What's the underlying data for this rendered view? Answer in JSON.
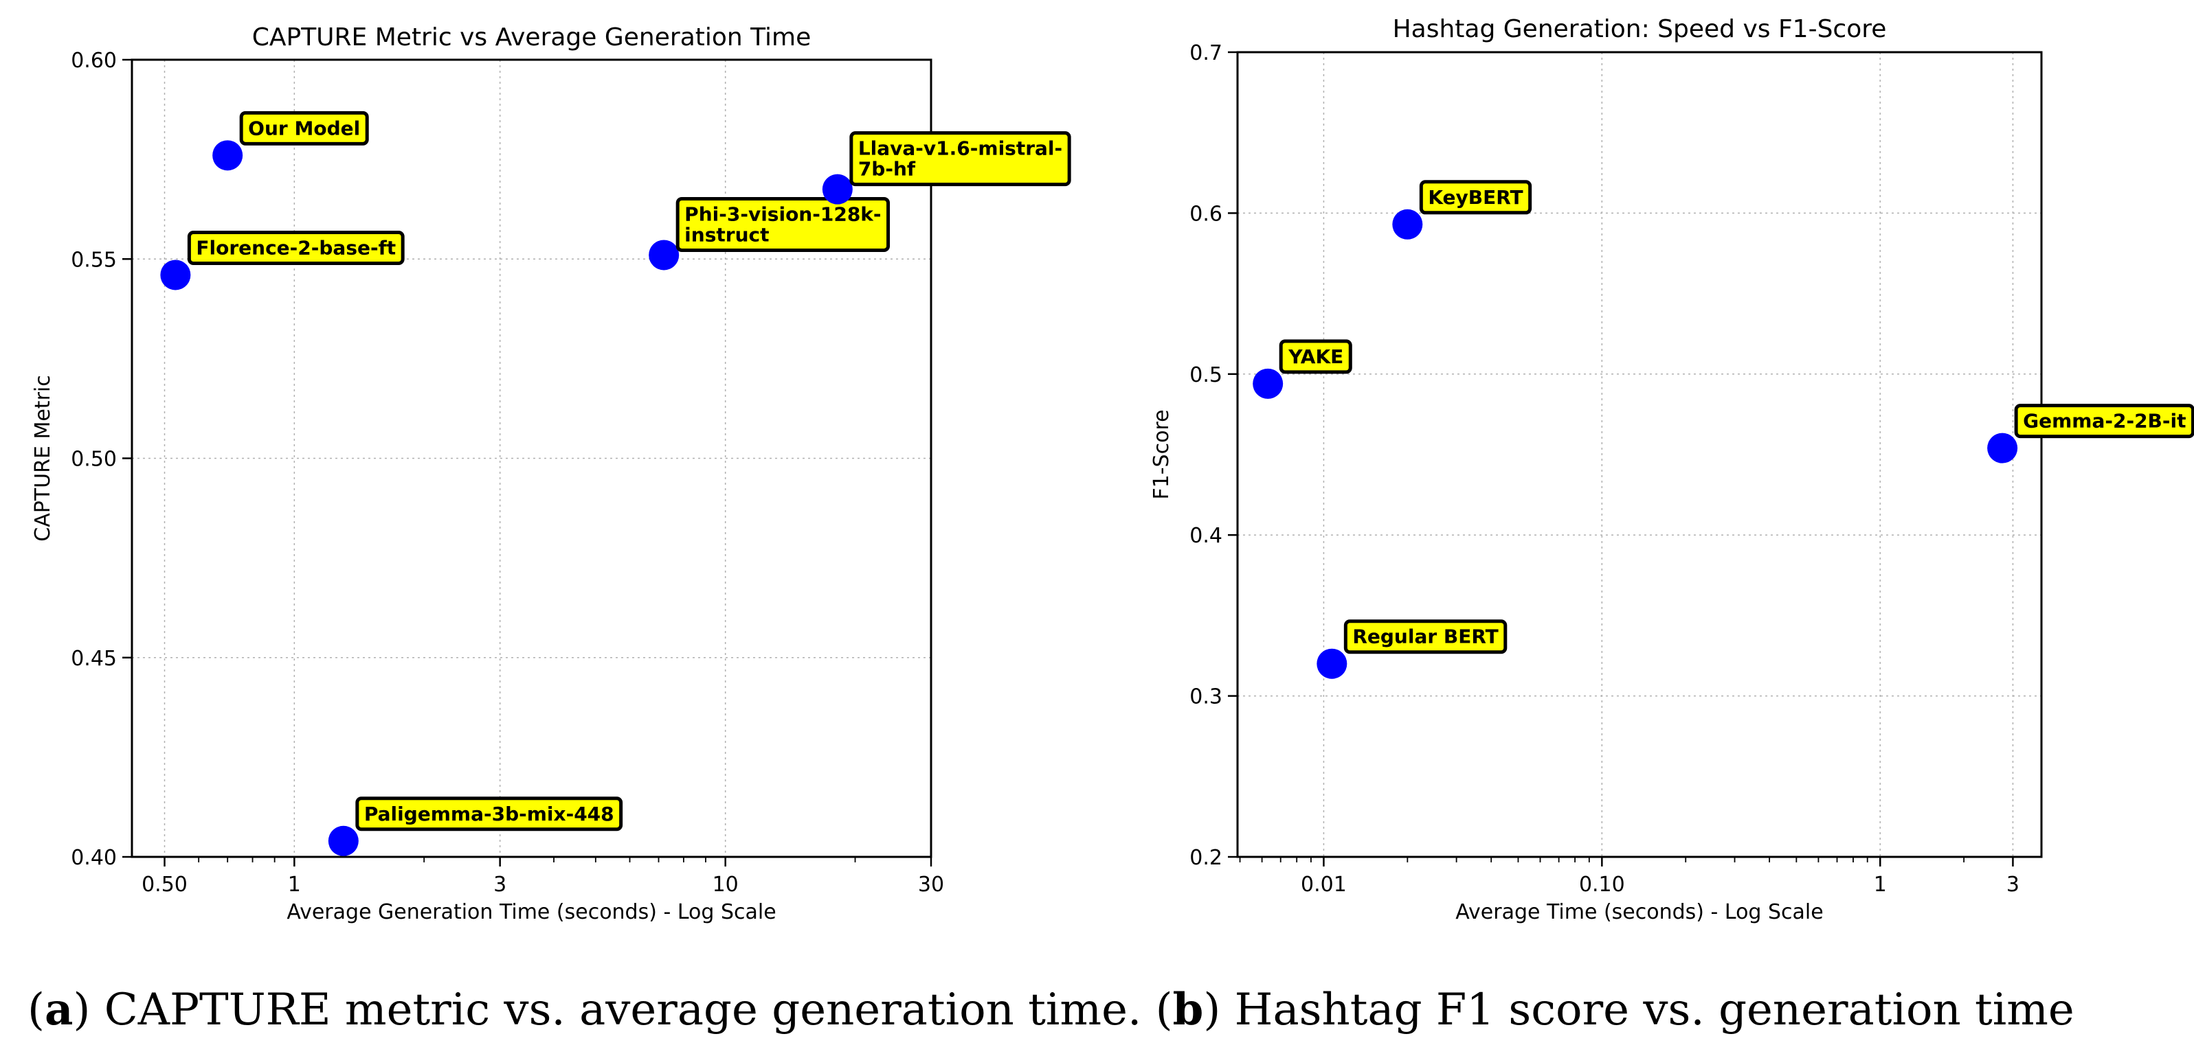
{
  "chart_data": [
    {
      "type": "scatter",
      "title": "CAPTURE Metric vs Average Generation Time",
      "xlabel": "Average Generation Time (seconds) - Log Scale",
      "ylabel": "CAPTURE Metric",
      "xscale": "log",
      "xlim": [
        0.42,
        30
      ],
      "ylim": [
        0.4,
        0.6
      ],
      "xticks": [
        0.5,
        1,
        3,
        10,
        30
      ],
      "xtick_labels": [
        "0.50",
        "1",
        "3",
        "10",
        "30"
      ],
      "yticks": [
        0.4,
        0.45,
        0.5,
        0.55,
        0.6
      ],
      "ytick_labels": [
        "0.40",
        "0.45",
        "0.50",
        "0.55",
        "0.60"
      ],
      "grid": true,
      "point_color": "#0000ff",
      "label_box_color": "#ffff00",
      "points": [
        {
          "label": [
            "Our Model"
          ],
          "x": 0.7,
          "y": 0.576
        },
        {
          "label": [
            "Florence-2-base-ft"
          ],
          "x": 0.53,
          "y": 0.546
        },
        {
          "label": [
            "Phi-3-vision-128k-",
            "instruct"
          ],
          "x": 7.2,
          "y": 0.551
        },
        {
          "label": [
            "Llava-v1.6-mistral-",
            "7b-hf"
          ],
          "x": 18.2,
          "y": 0.5675
        },
        {
          "label": [
            "Paligemma-3b-mix-448"
          ],
          "x": 1.3,
          "y": 0.404
        }
      ]
    },
    {
      "type": "scatter",
      "title": "Hashtag Generation: Speed vs F1-Score",
      "xlabel": "Average Time (seconds) - Log Scale",
      "ylabel": "F1-Score",
      "xscale": "log",
      "xlim": [
        0.0049,
        3.8
      ],
      "ylim": [
        0.2,
        0.7
      ],
      "xticks": [
        0.01,
        0.1,
        1,
        3
      ],
      "xtick_labels": [
        "0.01",
        "0.10",
        "1",
        "3"
      ],
      "yticks": [
        0.2,
        0.3,
        0.4,
        0.5,
        0.6,
        0.7
      ],
      "ytick_labels": [
        "0.2",
        "0.3",
        "0.4",
        "0.5",
        "0.6",
        "0.7"
      ],
      "grid": true,
      "point_color": "#0000ff",
      "label_box_color": "#ffff00",
      "points": [
        {
          "label": [
            "KeyBERT"
          ],
          "x": 0.02,
          "y": 0.593
        },
        {
          "label": [
            "YAKE"
          ],
          "x": 0.0063,
          "y": 0.494
        },
        {
          "label": [
            "Gemma-2-2B-it"
          ],
          "x": 2.75,
          "y": 0.454
        },
        {
          "label": [
            "Regular BERT"
          ],
          "x": 0.0107,
          "y": 0.32
        }
      ]
    }
  ],
  "caption": {
    "a_label": "a",
    "a_text": ") CAPTURE metric vs. average generation time. (",
    "b_label": "b",
    "b_text": ") Hashtag F1 score vs. generation time"
  }
}
